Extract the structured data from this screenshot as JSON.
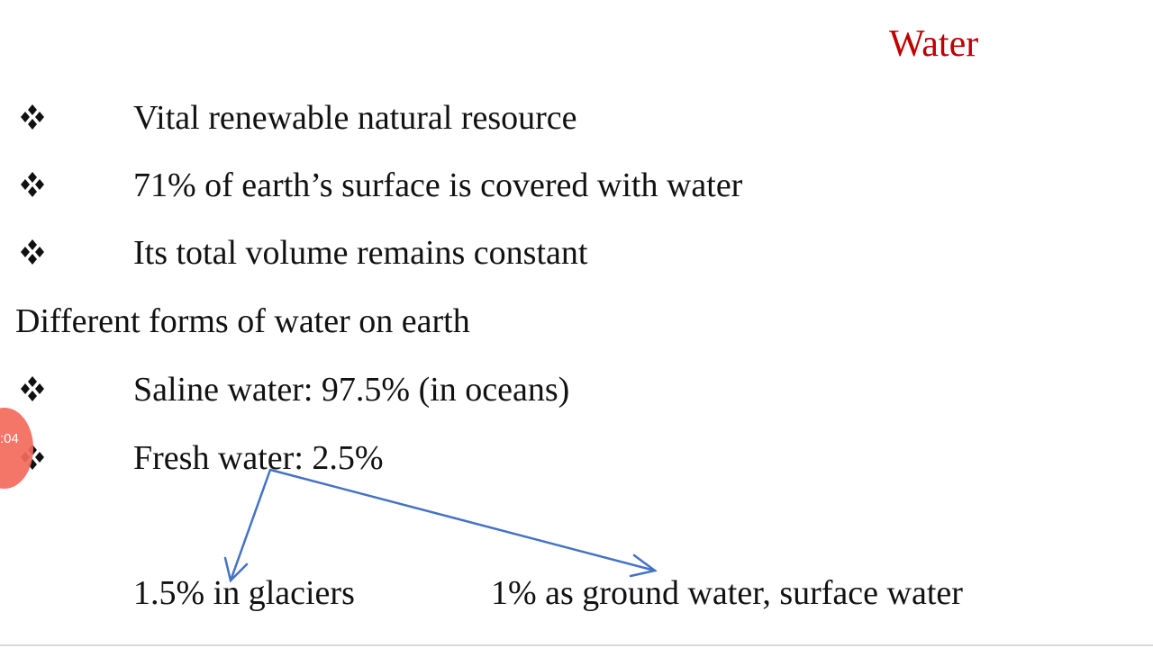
{
  "title": "Water",
  "bullets_top": [
    "Vital renewable natural resource",
    "71% of earth’s surface is covered with water",
    "Its total volume remains constant"
  ],
  "heading": "Different forms of water on earth",
  "bullets_forms": [
    "Saline water: 97.5% (in oceans)",
    "Fresh water: 2.5%"
  ],
  "fresh_water_split": [
    "1.5% in glaciers",
    "1% as ground water, surface water"
  ],
  "overlay": {
    "timer": ":04"
  }
}
